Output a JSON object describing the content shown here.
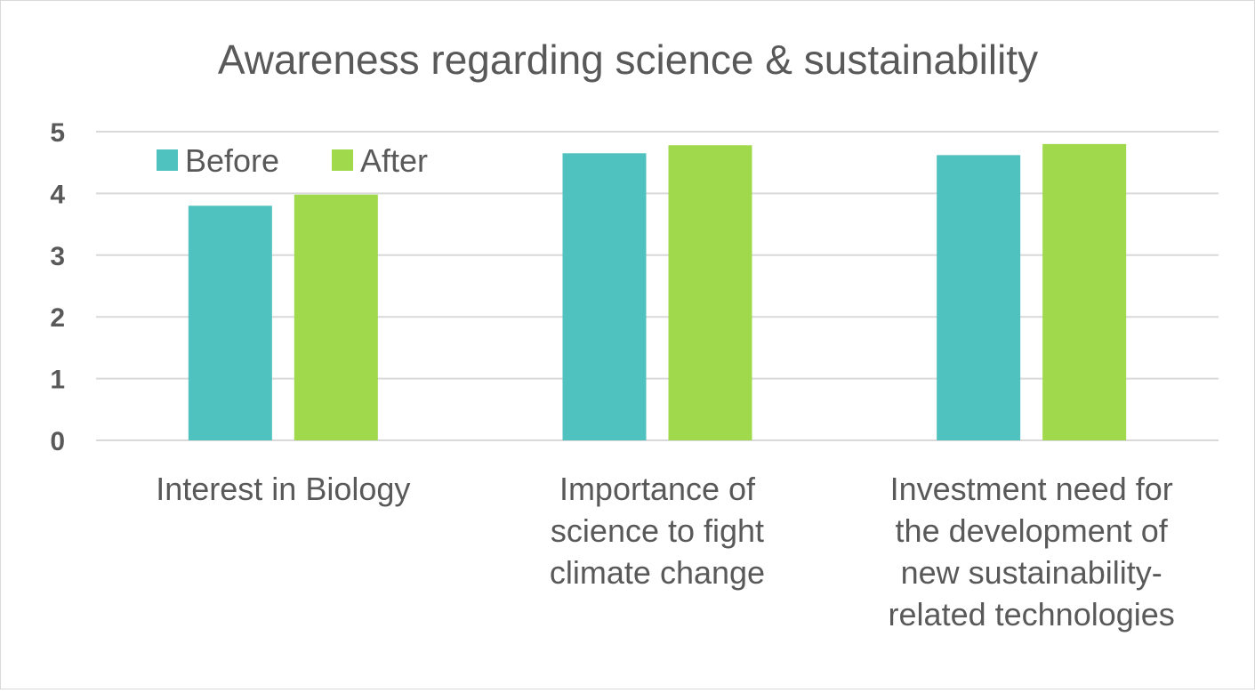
{
  "chart_data": {
    "type": "bar",
    "title": "Awareness regarding science & sustainability",
    "categories": [
      [
        "Interest in Biology"
      ],
      [
        "Importance of",
        "science to fight",
        "climate change"
      ],
      [
        "Investment need for",
        "the development of",
        "new sustainability-",
        "related technologies"
      ]
    ],
    "series": [
      {
        "name": "Before",
        "color": "#4fc1be",
        "values": [
          3.8,
          4.65,
          4.62
        ]
      },
      {
        "name": "After",
        "color": "#a1d94c",
        "values": [
          3.98,
          4.78,
          4.8
        ]
      }
    ],
    "ylim": [
      0,
      5
    ],
    "yticks": [
      "0",
      "1",
      "2",
      "3",
      "4",
      "5"
    ],
    "grid": true,
    "legend_position": "top-left",
    "gridline_color": "#d9d9d9"
  }
}
